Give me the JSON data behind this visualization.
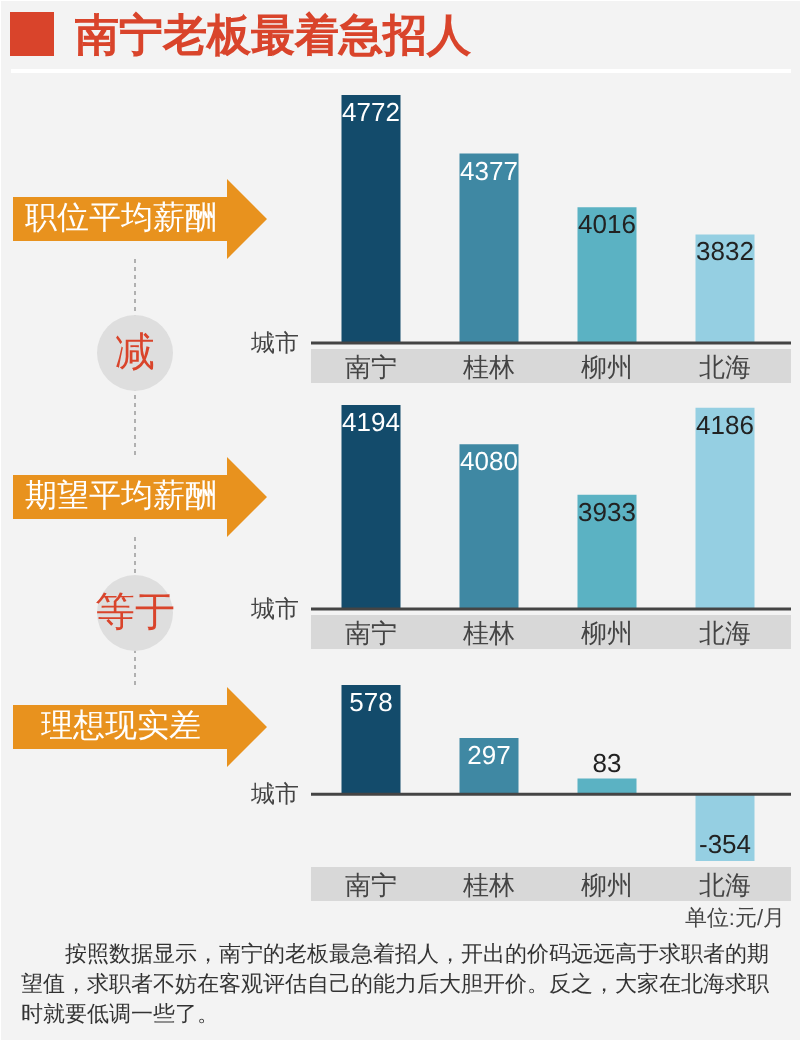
{
  "chart_data": [
    {
      "type": "bar",
      "title": "南宁老板最着急招人",
      "subtitle": "职位平均薪酬",
      "xlabel": "城市",
      "categories": [
        "南宁",
        "桂林",
        "柳州",
        "北海"
      ],
      "values": [
        4772,
        4377,
        4016,
        3832
      ],
      "colors": [
        "#134b6b",
        "#3f88a3",
        "#5bb2c3",
        "#95cfe2"
      ],
      "ylim": [
        3100,
        4772
      ],
      "data_labels": true,
      "tick_labels": "x",
      "annotations": [
        "减"
      ]
    },
    {
      "type": "bar",
      "subtitle": "期望平均薪酬",
      "xlabel": "城市",
      "categories": [
        "南宁",
        "桂林",
        "柳州",
        "北海"
      ],
      "values": [
        4194,
        4080,
        3933,
        4186
      ],
      "colors": [
        "#134b6b",
        "#3f88a3",
        "#5bb2c3",
        "#95cfe2"
      ],
      "ylim": [
        3600,
        4194
      ],
      "data_labels": true,
      "tick_labels": "x",
      "annotations": [
        "等于"
      ]
    },
    {
      "type": "bar",
      "subtitle": "理想现实差",
      "xlabel": "城市",
      "categories": [
        "南宁",
        "桂林",
        "柳州",
        "北海"
      ],
      "values": [
        578,
        297,
        83,
        -354
      ],
      "colors": [
        "#134b6b",
        "#3f88a3",
        "#5bb2c3",
        "#95cfe2"
      ],
      "ylim": [
        -354,
        578
      ],
      "data_labels": true,
      "tick_labels": "x",
      "annotations": [
        "单位:元/月",
        "按照数据显示，南宁的老板最急着招人，开出的价码远远高于求职者的期望值，求职者不妨在客观评估自己的能力后大胆开价。反之，大家在北海求职时就要低调一些了。"
      ]
    }
  ]
}
